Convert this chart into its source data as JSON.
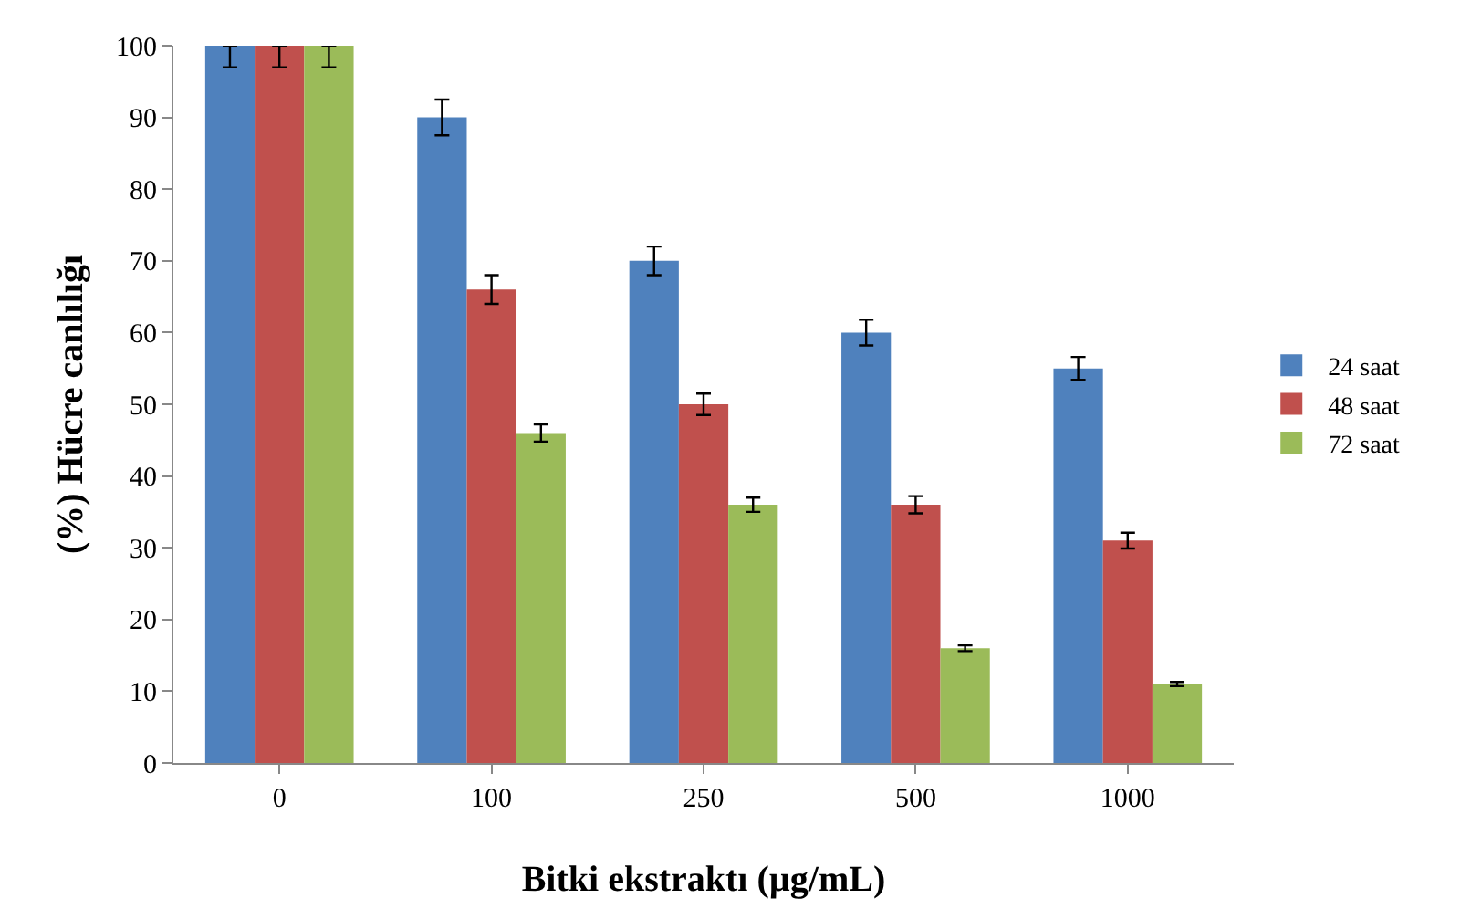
{
  "chart_data": {
    "type": "bar",
    "xlabel": "Bitki ekstraktı (µg/mL)",
    "ylabel": "(%) Hücre canlılığı",
    "categories": [
      "0",
      "100",
      "250",
      "500",
      "1000"
    ],
    "series": [
      {
        "name": "24 saat",
        "color": "#4f81bd",
        "values": [
          100,
          90,
          70,
          60,
          55
        ],
        "errors": [
          [
            97,
            100
          ],
          2.5,
          2,
          1.8,
          1.6
        ]
      },
      {
        "name": "48 saat",
        "color": "#c0504d",
        "values": [
          100,
          66,
          50,
          36,
          31
        ],
        "errors": [
          [
            97,
            100
          ],
          2,
          1.5,
          1.2,
          1.1
        ]
      },
      {
        "name": "72 saat",
        "color": "#9bbb59",
        "values": [
          100,
          46,
          36,
          16,
          11
        ],
        "errors": [
          [
            97,
            100
          ],
          1.2,
          1,
          0.4,
          0.3
        ]
      }
    ],
    "ylim": [
      0,
      100
    ],
    "yticks": [
      0,
      10,
      20,
      30,
      40,
      50,
      60,
      70,
      80,
      90,
      100
    ],
    "grid": false,
    "legend": "right"
  }
}
